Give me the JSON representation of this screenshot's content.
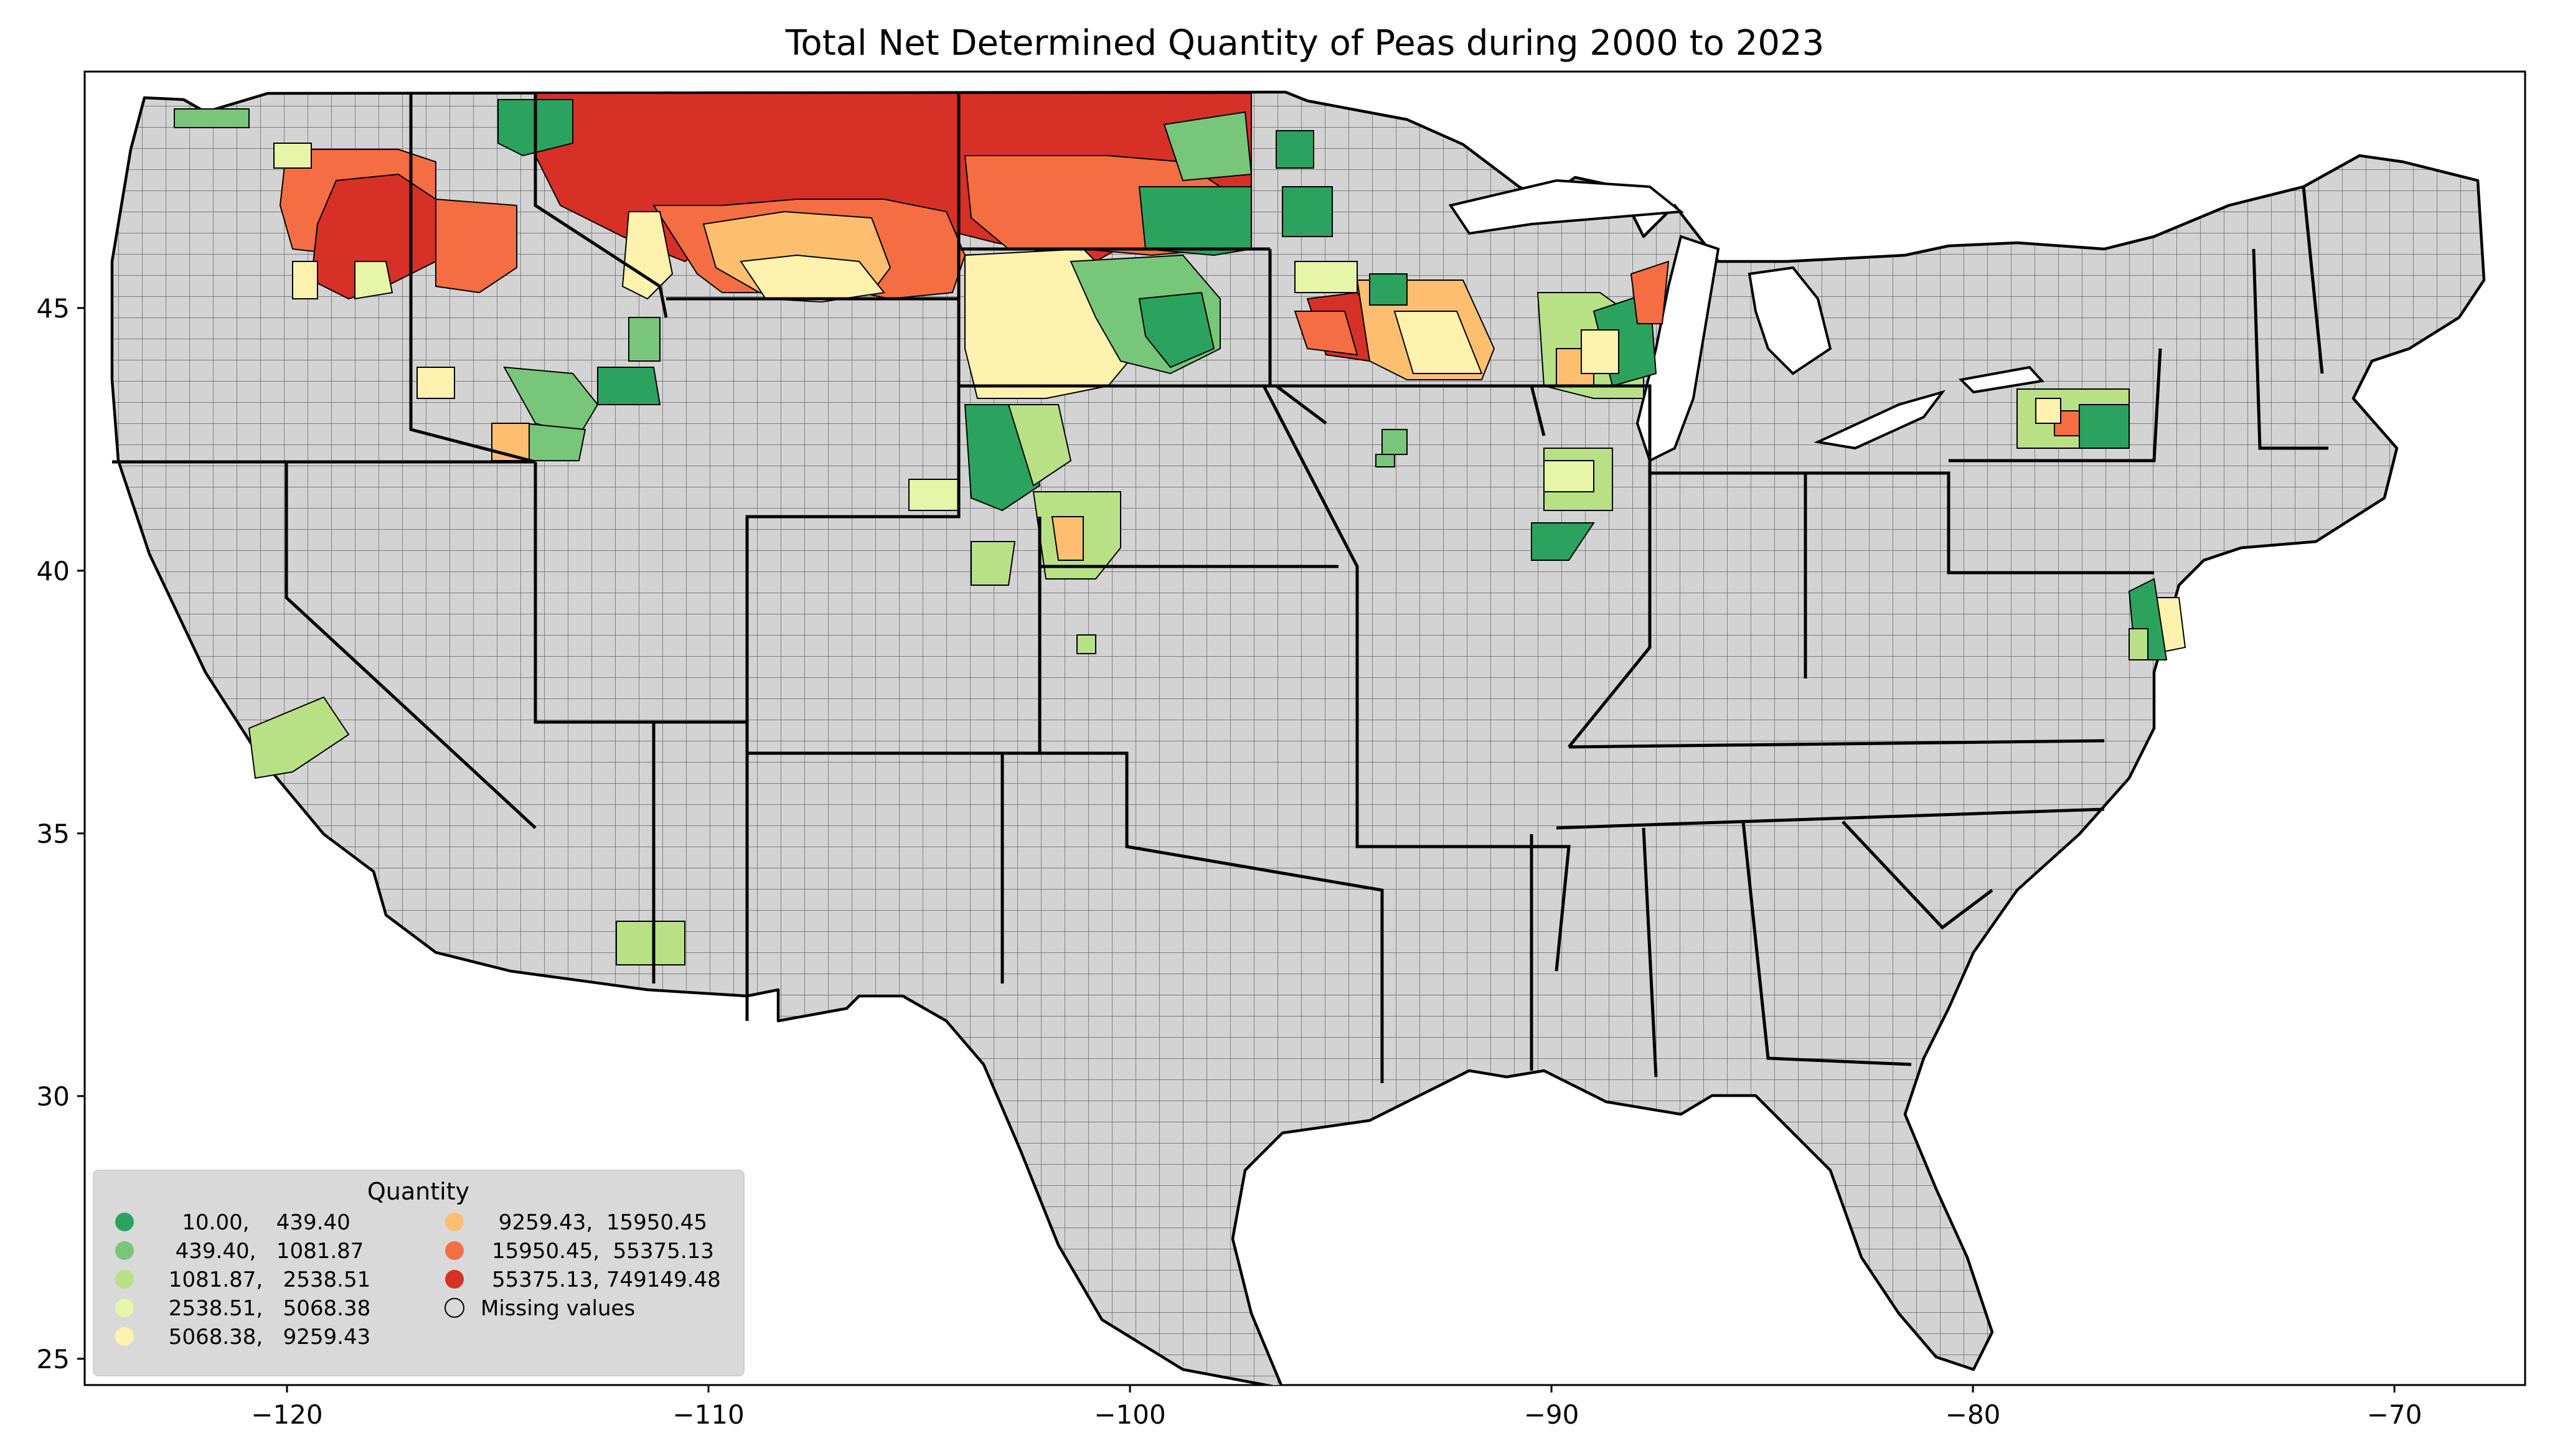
{
  "title": "Total Net Determined Quantity of Peas during 2000 to 2023",
  "map": {
    "x_ticks": [
      {
        "value": -120,
        "label": "−120"
      },
      {
        "value": -110,
        "label": "−110"
      },
      {
        "value": -100,
        "label": "−100"
      },
      {
        "value": -90,
        "label": "−90"
      },
      {
        "value": -80,
        "label": "−80"
      },
      {
        "value": -70,
        "label": "−70"
      }
    ],
    "y_ticks": [
      {
        "value": 45,
        "label": "45"
      },
      {
        "value": 40,
        "label": "40"
      },
      {
        "value": 35,
        "label": "35"
      },
      {
        "value": 30,
        "label": "30"
      },
      {
        "value": 25,
        "label": "25"
      }
    ],
    "xlim": [
      -124.8,
      -66.9
    ],
    "ylim": [
      24.5,
      49.5
    ],
    "missing_color": "#d3d3d3"
  },
  "legend": {
    "title": "Quantity",
    "items": [
      {
        "label": "   10.00,    439.40",
        "color": "#2ca25f"
      },
      {
        "label": "  439.40,   1081.87",
        "color": "#78c679"
      },
      {
        "label": " 1081.87,   2538.51",
        "color": "#b8e186"
      },
      {
        "label": " 2538.51,   5068.38",
        "color": "#e6f5a8"
      },
      {
        "label": " 5068.38,   9259.43",
        "color": "#fff2ae"
      },
      {
        "label": " 9259.43,  15950.45",
        "color": "#fdbf6f"
      },
      {
        "label": "15950.45,  55375.13",
        "color": "#f46d43"
      },
      {
        "label": "55375.13, 749149.48",
        "color": "#d73027"
      },
      {
        "label": "Missing values",
        "color": "#d3d3d3"
      }
    ]
  }
}
